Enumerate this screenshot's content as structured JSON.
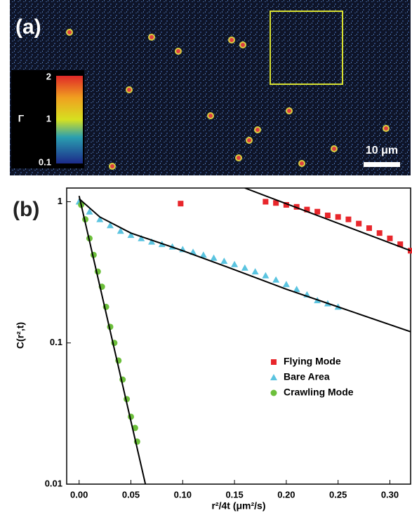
{
  "panel_a": {
    "label": "(a)",
    "colorbar": {
      "title": "Γ",
      "ticks": [
        "2",
        "1",
        "0.1"
      ]
    },
    "scale_bar": "10 μm"
  },
  "chart_data": {
    "type": "scatter",
    "panel_label": "(b)",
    "x_label": "r²/4t (μm²/s)",
    "y_label": "C(r²,t)",
    "log_y": true,
    "legend": "right",
    "xlim": [
      -0.012,
      0.32
    ],
    "ylim": [
      0.01,
      1.25
    ],
    "xticks": [
      {
        "value": 0,
        "label": "0.00"
      },
      {
        "value": 0.05,
        "label": "0.05"
      },
      {
        "value": 0.1,
        "label": "0.10"
      },
      {
        "value": 0.15,
        "label": "0.15"
      },
      {
        "value": 0.2,
        "label": "0.20"
      },
      {
        "value": 0.25,
        "label": "0.25"
      },
      {
        "value": 0.3,
        "label": "0.30"
      }
    ],
    "yticks": [
      0.01,
      0.1,
      1
    ],
    "series": [
      {
        "name": "Flying Mode",
        "color": "#e8262b",
        "marker": "square",
        "x": [
          0.098,
          0.18,
          0.19,
          0.2,
          0.21,
          0.22,
          0.23,
          0.24,
          0.25,
          0.26,
          0.27,
          0.28,
          0.29,
          0.3,
          0.31,
          0.32
        ],
        "values": [
          0.97,
          1.0,
          0.98,
          0.95,
          0.92,
          0.88,
          0.85,
          0.8,
          0.78,
          0.75,
          0.7,
          0.65,
          0.6,
          0.55,
          0.5,
          0.45
        ]
      },
      {
        "name": "Bare Area",
        "color": "#5bc4e0",
        "marker": "triangle",
        "x": [
          0,
          0.01,
          0.02,
          0.03,
          0.04,
          0.05,
          0.06,
          0.07,
          0.08,
          0.09,
          0.1,
          0.11,
          0.12,
          0.13,
          0.14,
          0.15,
          0.16,
          0.17,
          0.18,
          0.19,
          0.2,
          0.21,
          0.22,
          0.23,
          0.24,
          0.25
        ],
        "values": [
          1.0,
          0.85,
          0.75,
          0.68,
          0.62,
          0.58,
          0.55,
          0.52,
          0.5,
          0.48,
          0.46,
          0.44,
          0.42,
          0.4,
          0.38,
          0.36,
          0.34,
          0.32,
          0.3,
          0.28,
          0.26,
          0.24,
          0.22,
          0.2,
          0.19,
          0.18
        ]
      },
      {
        "name": "Crawling Mode",
        "color": "#6cbf3b",
        "marker": "circle",
        "x": [
          0.002,
          0.006,
          0.01,
          0.014,
          0.018,
          0.022,
          0.026,
          0.03,
          0.034,
          0.038,
          0.042,
          0.046,
          0.05,
          0.054,
          0.056
        ],
        "values": [
          0.95,
          0.75,
          0.55,
          0.42,
          0.32,
          0.25,
          0.18,
          0.13,
          0.1,
          0.075,
          0.055,
          0.04,
          0.03,
          0.025,
          0.02
        ]
      }
    ],
    "fits": [
      {
        "color": "#000000",
        "x": [
          0.16,
          0.32
        ],
        "values": [
          1.25,
          0.45
        ]
      },
      {
        "color": "#000000",
        "x": [
          0,
          0.02,
          0.05,
          0.1,
          0.15,
          0.2,
          0.25,
          0.32
        ],
        "values": [
          1.05,
          0.78,
          0.6,
          0.45,
          0.33,
          0.24,
          0.18,
          0.12
        ]
      },
      {
        "color": "#000000",
        "x": [
          0,
          0.064
        ],
        "values": [
          1.1,
          0.01
        ]
      }
    ]
  }
}
